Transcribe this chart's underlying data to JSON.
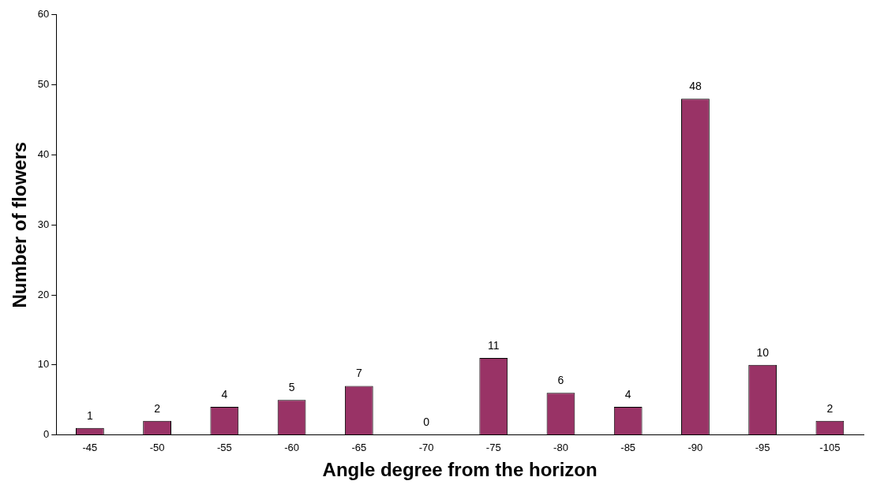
{
  "chart_data": {
    "type": "bar",
    "xlabel": "Angle degree from the horizon",
    "ylabel": "Number of flowers",
    "categories": [
      "-45",
      "-50",
      "-55",
      "-60",
      "-65",
      "-70",
      "-75",
      "-80",
      "-85",
      "-90",
      "-95",
      "-105"
    ],
    "values": [
      1,
      2,
      4,
      5,
      7,
      0,
      11,
      6,
      4,
      48,
      10,
      2
    ],
    "color": "#993366",
    "ylim": [
      0,
      60
    ],
    "yticks": [
      0,
      10,
      20,
      30,
      40,
      50,
      60
    ],
    "grid": false,
    "data_labels": true
  }
}
